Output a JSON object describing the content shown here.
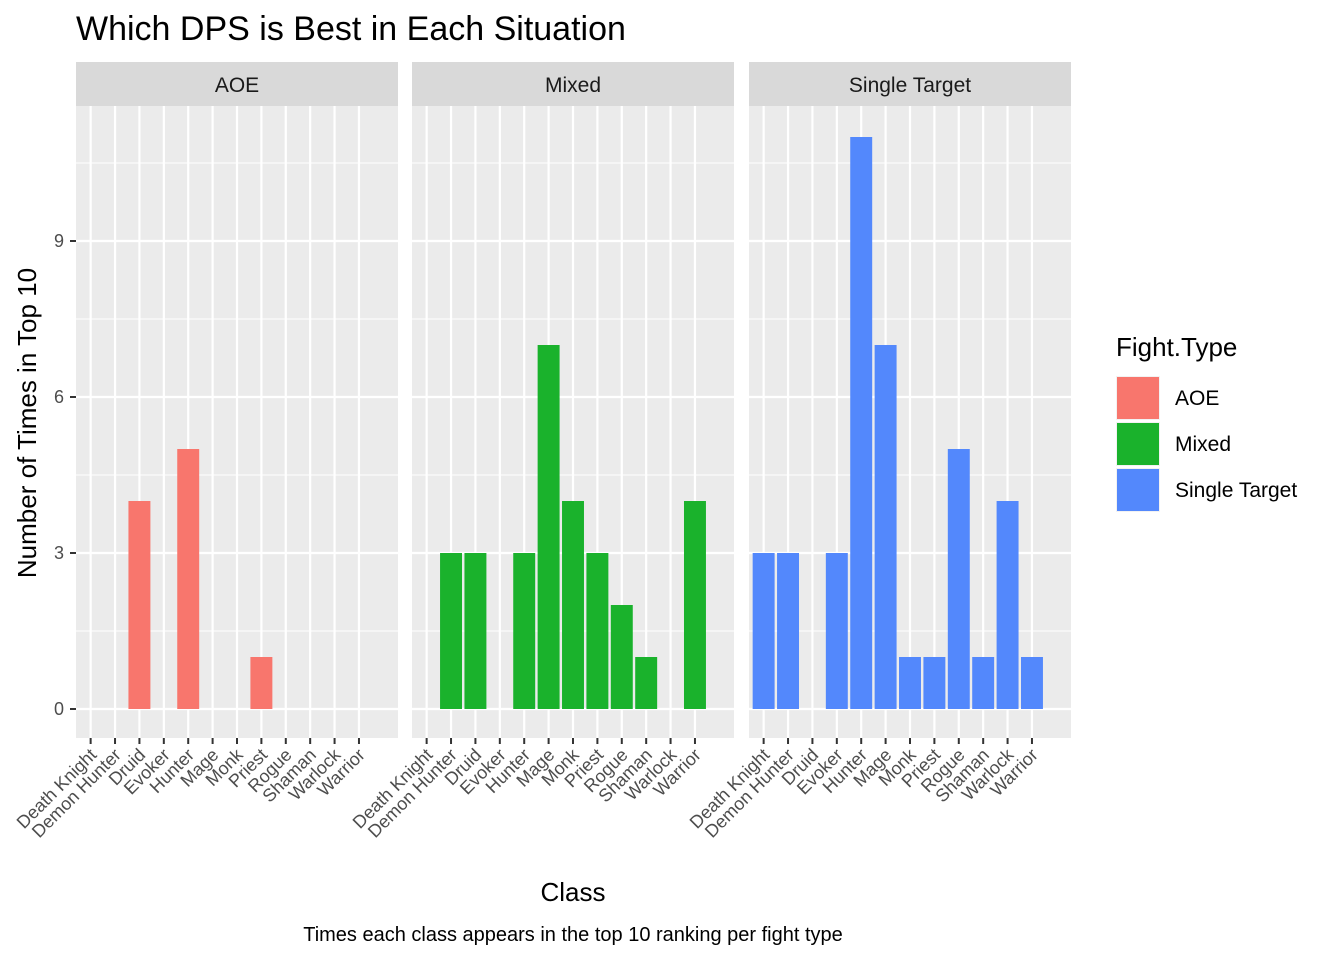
{
  "chart_data": {
    "type": "bar",
    "title": "Which DPS is Best in Each Situation",
    "xlabel": "Class",
    "ylabel": "Number of Times in Top 10",
    "caption": "Times each class appears in the top 10 ranking per fight type",
    "categories": [
      "Death Knight",
      "Demon Hunter",
      "Druid",
      "Evoker",
      "Hunter",
      "Mage",
      "Monk",
      "Priest",
      "Rogue",
      "Shaman",
      "Warlock",
      "Warrior"
    ],
    "y_ticks": [
      0,
      3,
      6,
      9
    ],
    "ylim": [
      -0.55,
      11.55
    ],
    "grid": true,
    "legend": {
      "title": "Fight.Type",
      "position": "right",
      "entries": [
        "AOE",
        "Mixed",
        "Single Target"
      ]
    },
    "colors": {
      "AOE": "#F8766D",
      "Mixed": "#1AB22C",
      "Single Target": "#5388FC",
      "panel_background": "#EBEBEB",
      "strip_background": "#D9D9D9",
      "grid": "#FFFFFF"
    },
    "facets": [
      {
        "name": "AOE",
        "values": [
          0,
          0,
          4,
          0,
          5,
          0,
          0,
          1,
          0,
          0,
          0,
          0
        ]
      },
      {
        "name": "Mixed",
        "values": [
          0,
          3,
          3,
          0,
          3,
          7,
          4,
          3,
          2,
          1,
          0,
          4
        ]
      },
      {
        "name": "Single Target",
        "values": [
          3,
          3,
          0,
          3,
          11,
          7,
          1,
          1,
          5,
          1,
          4,
          1
        ]
      }
    ]
  }
}
